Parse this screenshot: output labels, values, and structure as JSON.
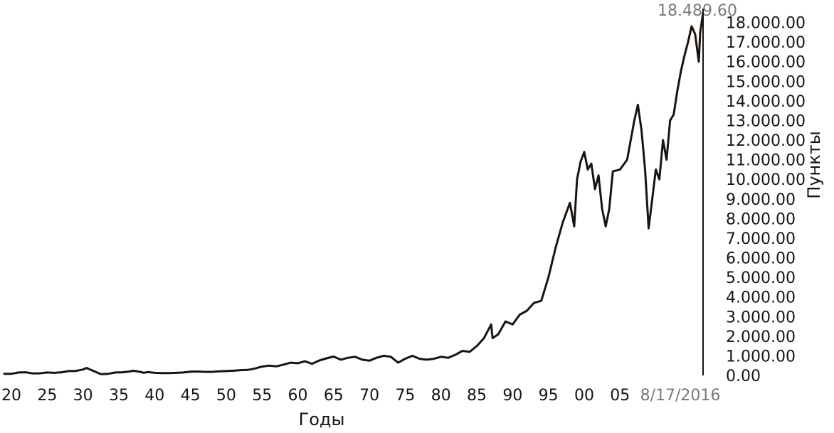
{
  "chart_data": {
    "type": "line",
    "xlabel": "Годы",
    "ylabel": "Пункты",
    "peak_label": "18.489.60",
    "end_date_label": "8/17/2016",
    "x_tick_labels": [
      "20",
      "25",
      "30",
      "35",
      "40",
      "45",
      "50",
      "55",
      "60",
      "65",
      "70",
      "75",
      "80",
      "85",
      "90",
      "95",
      "00",
      "05"
    ],
    "x_tick_years": [
      1920,
      1925,
      1930,
      1935,
      1940,
      1945,
      1950,
      1955,
      1960,
      1965,
      1970,
      1975,
      1980,
      1985,
      1990,
      1995,
      2000,
      2005
    ],
    "y_tick_labels": [
      "0.00",
      "1.000.00",
      "2.000.00",
      "3.000.00",
      "4.000.00",
      "5.000.00",
      "6.000.00",
      "7.000.00",
      "8.000.00",
      "9.000.00",
      "10.000.00",
      "11.000.00",
      "12.000.00",
      "13.000.00",
      "14.000.00",
      "15.000.00",
      "16.000.00",
      "17.000.00",
      "18.000.00"
    ],
    "y_tick_values": [
      0,
      1000,
      2000,
      3000,
      4000,
      5000,
      6000,
      7000,
      8000,
      9000,
      10000,
      11000,
      12000,
      13000,
      14000,
      15000,
      16000,
      17000,
      18000
    ],
    "ylim": [
      0,
      18489.6
    ],
    "xlim": [
      1919,
      2016.6
    ],
    "y_axis_position": "right",
    "grid": false,
    "line_color": "#1a1410",
    "series": [
      {
        "values": [
          [
            1919.0,
            80
          ],
          [
            1920.0,
            80
          ],
          [
            1921.0,
            150
          ],
          [
            1922.0,
            160
          ],
          [
            1923.0,
            100
          ],
          [
            1924.0,
            110
          ],
          [
            1925.0,
            150
          ],
          [
            1926.0,
            130
          ],
          [
            1927.0,
            160
          ],
          [
            1928.0,
            220
          ],
          [
            1929.0,
            230
          ],
          [
            1930.0,
            300
          ],
          [
            1930.5,
            380
          ],
          [
            1931.0,
            300
          ],
          [
            1932.5,
            60
          ],
          [
            1933.5,
            80
          ],
          [
            1934.5,
            150
          ],
          [
            1935.5,
            160
          ],
          [
            1936.5,
            200
          ],
          [
            1937.0,
            240
          ],
          [
            1938.0,
            180
          ],
          [
            1938.5,
            130
          ],
          [
            1939.0,
            170
          ],
          [
            1940.0,
            130
          ],
          [
            1941.0,
            120
          ],
          [
            1942.0,
            120
          ],
          [
            1943.0,
            130
          ],
          [
            1944.0,
            150
          ],
          [
            1945.0,
            190
          ],
          [
            1946.0,
            200
          ],
          [
            1947.0,
            180
          ],
          [
            1948.0,
            180
          ],
          [
            1949.0,
            210
          ],
          [
            1950.0,
            220
          ],
          [
            1951.0,
            240
          ],
          [
            1952.0,
            270
          ],
          [
            1953.0,
            280
          ],
          [
            1954.0,
            350
          ],
          [
            1955.0,
            450
          ],
          [
            1956.0,
            500
          ],
          [
            1957.0,
            460
          ],
          [
            1958.0,
            550
          ],
          [
            1959.0,
            650
          ],
          [
            1960.0,
            620
          ],
          [
            1961.0,
            720
          ],
          [
            1962.0,
            590
          ],
          [
            1963.0,
            760
          ],
          [
            1964.0,
            870
          ],
          [
            1965.0,
            960
          ],
          [
            1966.0,
            800
          ],
          [
            1967.0,
            900
          ],
          [
            1968.0,
            950
          ],
          [
            1969.0,
            800
          ],
          [
            1970.0,
            750
          ],
          [
            1971.0,
            900
          ],
          [
            1972.0,
            1000
          ],
          [
            1973.0,
            950
          ],
          [
            1974.0,
            650
          ],
          [
            1975.0,
            850
          ],
          [
            1976.0,
            1000
          ],
          [
            1977.0,
            850
          ],
          [
            1978.0,
            800
          ],
          [
            1979.0,
            850
          ],
          [
            1980.0,
            950
          ],
          [
            1981.0,
            900
          ],
          [
            1982.0,
            1050
          ],
          [
            1983.0,
            1250
          ],
          [
            1984.0,
            1200
          ],
          [
            1985.0,
            1500
          ],
          [
            1986.0,
            1900
          ],
          [
            1987.0,
            2600
          ],
          [
            1987.2,
            1900
          ],
          [
            1988.0,
            2100
          ],
          [
            1989.0,
            2750
          ],
          [
            1990.0,
            2600
          ],
          [
            1991.0,
            3100
          ],
          [
            1992.0,
            3300
          ],
          [
            1993.0,
            3700
          ],
          [
            1994.0,
            3800
          ],
          [
            1995.0,
            5000
          ],
          [
            1996.0,
            6500
          ],
          [
            1997.0,
            7800
          ],
          [
            1998.0,
            8800
          ],
          [
            1998.6,
            7600
          ],
          [
            1999.0,
            10000
          ],
          [
            1999.5,
            10900
          ],
          [
            2000.0,
            11400
          ],
          [
            2000.5,
            10500
          ],
          [
            2001.0,
            10800
          ],
          [
            2001.5,
            9500
          ],
          [
            2002.0,
            10200
          ],
          [
            2002.5,
            8500
          ],
          [
            2003.0,
            7600
          ],
          [
            2003.5,
            8500
          ],
          [
            2004.0,
            10400
          ],
          [
            2005.0,
            10500
          ],
          [
            2006.0,
            11000
          ],
          [
            2007.0,
            13000
          ],
          [
            2007.5,
            13800
          ],
          [
            2008.0,
            12500
          ],
          [
            2008.5,
            10500
          ],
          [
            2009.0,
            7500
          ],
          [
            2009.5,
            9000
          ],
          [
            2010.0,
            10500
          ],
          [
            2010.5,
            10000
          ],
          [
            2011.0,
            12000
          ],
          [
            2011.5,
            11000
          ],
          [
            2012.0,
            13000
          ],
          [
            2012.5,
            13300
          ],
          [
            2013.0,
            14500
          ],
          [
            2013.5,
            15500
          ],
          [
            2014.0,
            16300
          ],
          [
            2014.5,
            17000
          ],
          [
            2015.0,
            17800
          ],
          [
            2015.5,
            17400
          ],
          [
            2016.0,
            16000
          ],
          [
            2016.2,
            17500
          ],
          [
            2016.6,
            18489.6
          ]
        ]
      }
    ]
  }
}
